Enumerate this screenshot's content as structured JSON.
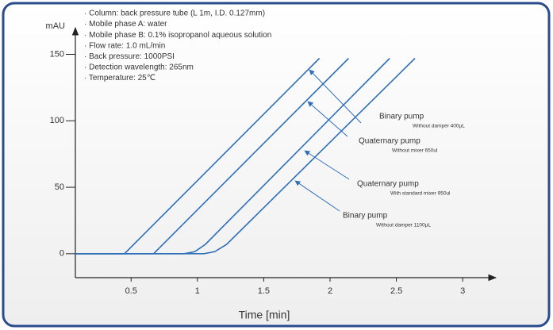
{
  "chart_data": {
    "type": "line",
    "ylabel": "mAU",
    "xlabel": "Time [min]",
    "notes": [
      "· Column: back pressure tube (L 1m, I.D. 0.127mm)",
      "· Mobile phase A: water",
      "· Mobile phase B: 0.1% isopropanol aqueous solution",
      "· Flow rate: 1.0 mL/min",
      "· Back pressure: 1000PSI",
      "· Detection wavelength: 265nm",
      "· Temperature: 25℃"
    ],
    "xlim": [
      0.08,
      3.25
    ],
    "ylim": [
      -18,
      170
    ],
    "xticks": [
      0.5,
      1,
      1.5,
      2,
      2.5,
      3
    ],
    "yticks": [
      0,
      50,
      100,
      150
    ],
    "grid": false,
    "series": [
      {
        "name": "Binary pump",
        "note": "Without damper 400µL",
        "color": "#2f6fb8",
        "x": [
          0.08,
          0.45,
          1.92
        ],
        "values": [
          0,
          0,
          147
        ]
      },
      {
        "name": "Quaternary pump",
        "note": "Without mixer 650ul",
        "color": "#2f6fb8",
        "x": [
          0.08,
          0.67,
          2.14
        ],
        "values": [
          0,
          0,
          147
        ]
      },
      {
        "name": "Quaternary pump",
        "note": "With standard mixer 950ul",
        "color": "#2f6fb8",
        "x": [
          0.08,
          0.9,
          0.98,
          1.06,
          2.45
        ],
        "values": [
          0,
          0,
          1.5,
          7,
          147
        ]
      },
      {
        "name": "Binary pump",
        "note": "Without damper 1100µL",
        "color": "#2f6fb8",
        "x": [
          0.08,
          1.05,
          1.13,
          1.22,
          2.64
        ],
        "values": [
          0,
          0,
          1.5,
          7,
          147
        ]
      }
    ]
  }
}
